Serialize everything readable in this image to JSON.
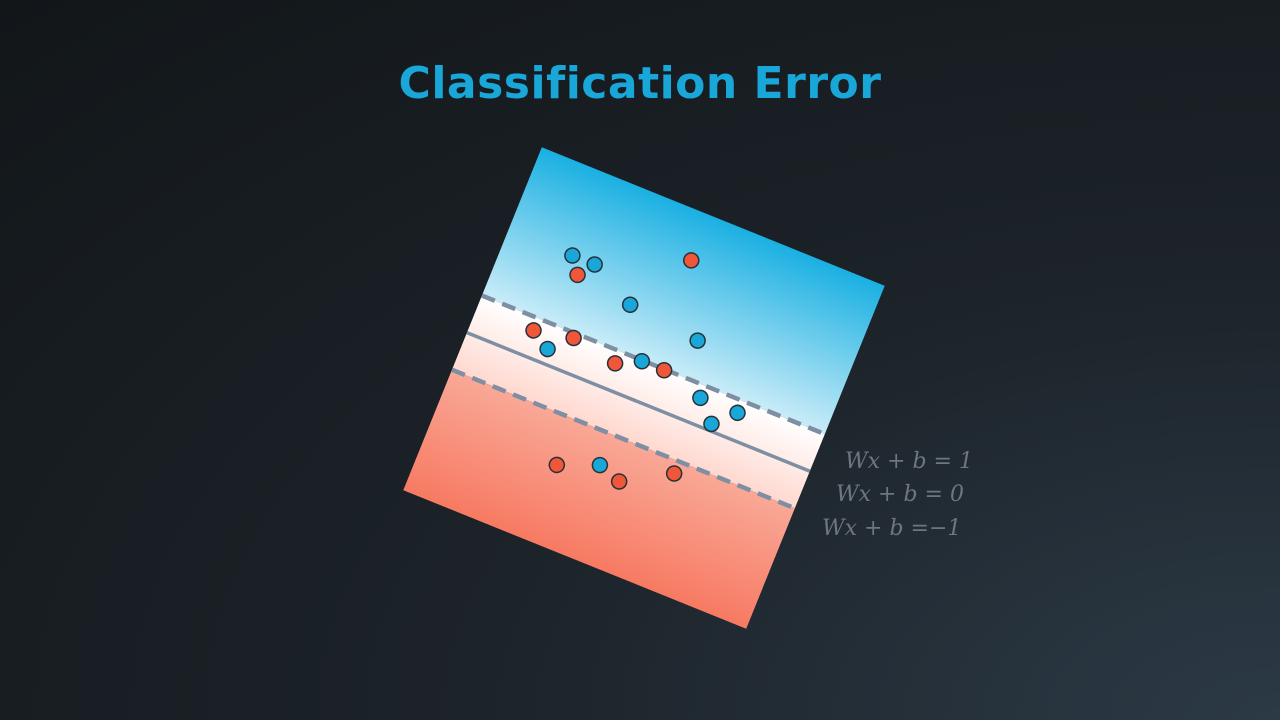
{
  "title": "Classification Error",
  "colors": {
    "title": "#19a7da",
    "class_blue": "#19a7da",
    "class_red": "#f0573a",
    "region_blue": "#1ab0e2",
    "region_red": "#f77a62",
    "boundary_line": "#7f8fa3"
  },
  "equations": {
    "upper_margin": "Wx + b = 1",
    "decision_boundary": "Wx + b = 0",
    "lower_margin": "Wx + b =−1"
  },
  "points": {
    "blue": [
      [
        -2.9,
        2.4
      ],
      [
        -2.3,
        2.4
      ],
      [
        -1.1,
        1.8
      ],
      [
        0.8,
        1.6
      ],
      [
        -0.3,
        0.6
      ],
      [
        1.4,
        0.3
      ],
      [
        2.4,
        0.3
      ],
      [
        1.9,
        -0.2
      ],
      [
        -2.6,
        0.0
      ],
      [
        -0.3,
        -2.2
      ]
    ],
    "red": [
      [
        -2.6,
        2.0
      ],
      [
        -0.1,
        3.4
      ],
      [
        -2.1,
        0.5
      ],
      [
        -3.1,
        0.3
      ],
      [
        -0.9,
        0.3
      ],
      [
        0.3,
        0.6
      ],
      [
        1.5,
        -1.7
      ],
      [
        0.3,
        -2.4
      ],
      [
        -1.3,
        -2.6
      ]
    ]
  }
}
